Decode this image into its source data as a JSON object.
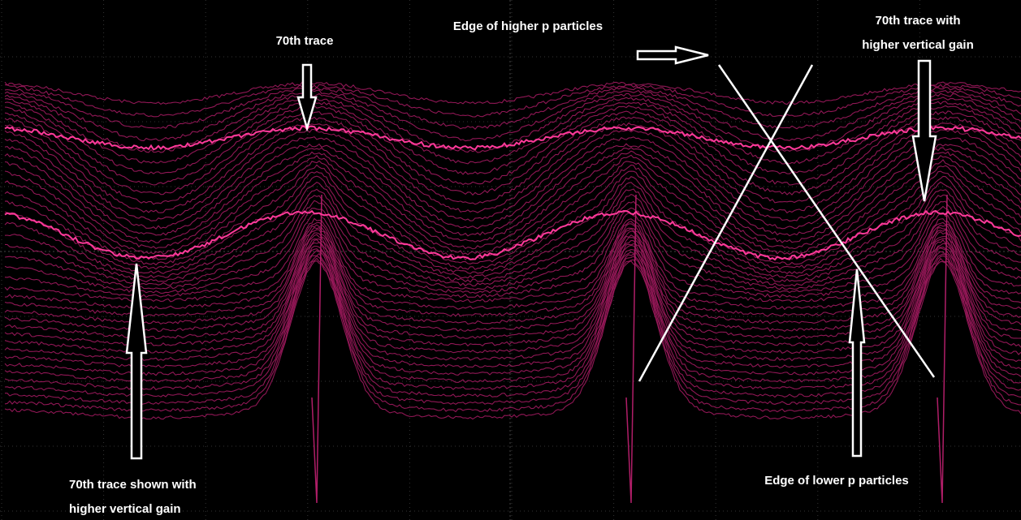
{
  "annotations": [
    {
      "lines": [
        "70th trace"
      ]
    },
    {
      "lines": [
        "Edge of higher p particles"
      ]
    },
    {
      "lines": [
        "70th trace with",
        "higher vertical gain"
      ]
    },
    {
      "lines": [
        "70th trace shown with",
        "higher vertical gain"
      ]
    },
    {
      "lines": [
        "Edge of lower p particles"
      ]
    }
  ]
}
